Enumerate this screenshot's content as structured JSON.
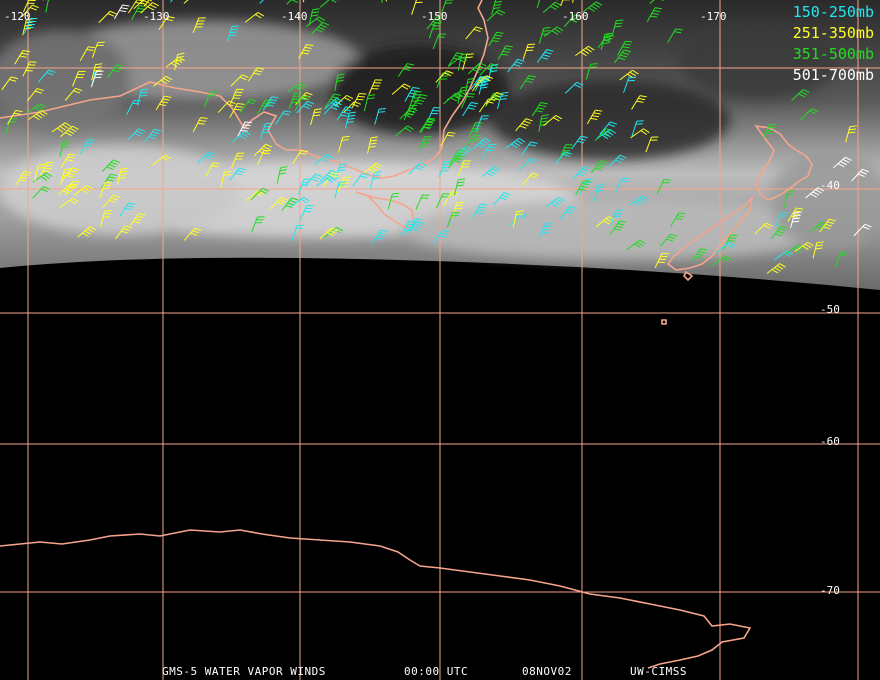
{
  "map": {
    "colors": {
      "background": "#000000",
      "grid": "#f6a58c",
      "coast": "#f6a58c",
      "vapor_light": "#e6e6e6",
      "vapor_dark": "#1a1a1a"
    },
    "longitude_labels": [
      "-120",
      "-130",
      "-140",
      "-150",
      "-160",
      "-170"
    ],
    "latitude_labels": [
      "-40",
      "-50",
      "-60",
      "-70"
    ],
    "legend": [
      {
        "label": "150-250mb",
        "color": "#22e6f0"
      },
      {
        "label": "251-350mb",
        "color": "#ffff22"
      },
      {
        "label": "351-500mb",
        "color": "#22dd22"
      },
      {
        "label": "501-700mb",
        "color": "#ffffff"
      }
    ],
    "footer": {
      "product": "GMS-5 WATER VAPOR WINDS",
      "time": "00:00 UTC",
      "date": "08NOV02",
      "source": "UW-CIMSS"
    }
  }
}
